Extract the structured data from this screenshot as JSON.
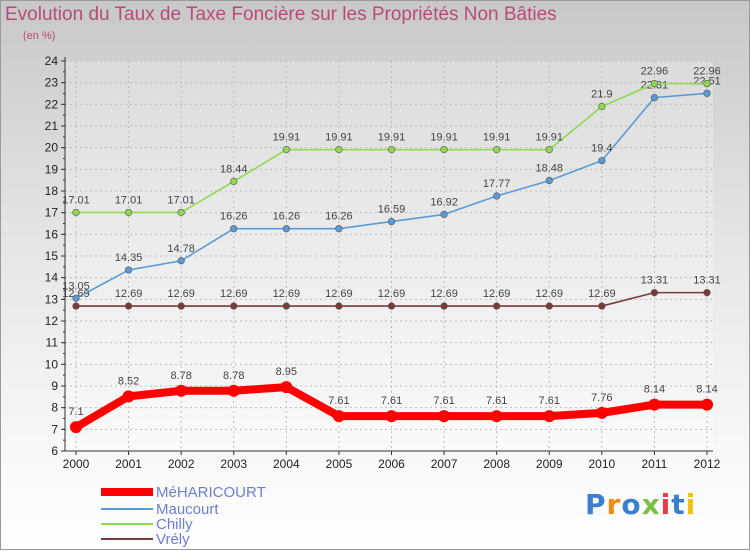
{
  "title": "Evolution du Taux de Taxe Foncière sur les Propriétés Non Bâties",
  "subtitle": "(en %)",
  "logo": "Proxiti",
  "chart_data": {
    "type": "line",
    "title": "Evolution du Taux de Taxe Foncière sur les Propriétés Non Bâties",
    "ylabel": "(en %)",
    "xlabel": "",
    "x": [
      "2000",
      "2001",
      "2002",
      "2003",
      "2004",
      "2005",
      "2006",
      "2007",
      "2008",
      "2009",
      "2010",
      "2011",
      "2012"
    ],
    "ylim": [
      6,
      24
    ],
    "yticks": [
      6,
      7,
      8,
      9,
      10,
      11,
      12,
      13,
      14,
      15,
      16,
      17,
      18,
      19,
      20,
      21,
      22,
      23,
      24
    ],
    "grid": true,
    "legend_position": "bottom-left",
    "series": [
      {
        "name": "MéHARICOURT",
        "color": "#ff0000",
        "values": [
          7.1,
          8.52,
          8.78,
          8.78,
          8.95,
          7.61,
          7.61,
          7.61,
          7.61,
          7.61,
          7.76,
          8.14,
          8.14
        ],
        "labels": [
          "7.1",
          "8.52",
          "8.78",
          "8.78",
          "8.95",
          "7.61",
          "7.61",
          "7.61",
          "7.61",
          "7.61",
          "7.76",
          "8.14",
          "8.14"
        ]
      },
      {
        "name": "Maucourt",
        "color": "#5b9bd5",
        "values": [
          13.05,
          14.35,
          14.78,
          16.26,
          16.26,
          16.26,
          16.59,
          16.92,
          17.77,
          18.48,
          19.4,
          22.31,
          22.51
        ],
        "labels": [
          "13.05",
          "14.35",
          "14.78",
          "16.26",
          "16.26",
          "16.26",
          "16.59",
          "16.92",
          "17.77",
          "18.48",
          "19.4",
          "22.31",
          "22.51"
        ]
      },
      {
        "name": "Chilly",
        "color": "#8fd94f",
        "values": [
          17.01,
          17.01,
          17.01,
          18.44,
          19.91,
          19.91,
          19.91,
          19.91,
          19.91,
          19.91,
          21.9,
          22.96,
          22.96
        ],
        "labels": [
          "17.01",
          "17.01",
          "17.01",
          "18.44",
          "19.91",
          "19.91",
          "19.91",
          "19.91",
          "19.91",
          "19.91",
          "21.9",
          "22.96",
          "22.96"
        ]
      },
      {
        "name": "Vrély",
        "color": "#7a3a3a",
        "values": [
          12.69,
          12.69,
          12.69,
          12.69,
          12.69,
          12.69,
          12.69,
          12.69,
          12.69,
          12.69,
          12.69,
          13.31,
          13.31
        ],
        "labels": [
          "12.69",
          "12.69",
          "12.69",
          "12.69",
          "12.69",
          "12.69",
          "12.69",
          "12.69",
          "12.69",
          "12.69",
          "12.69",
          "13.31",
          "13.31"
        ]
      }
    ]
  }
}
